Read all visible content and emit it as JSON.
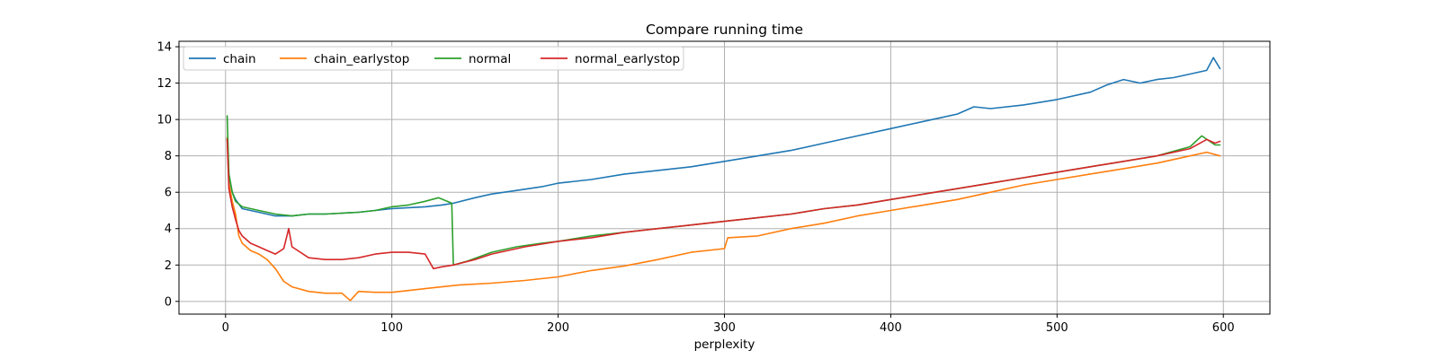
{
  "chart_data": {
    "type": "line",
    "title": "Compare running time",
    "xlabel": "perplexity",
    "ylabel": "",
    "xlim": [
      -28,
      628
    ],
    "ylim": [
      -0.7,
      14.3
    ],
    "xticks": [
      "0",
      "100",
      "200",
      "300",
      "400",
      "500",
      "600"
    ],
    "yticks": [
      "0",
      "2",
      "4",
      "6",
      "8",
      "10",
      "12",
      "14"
    ],
    "grid": true,
    "legend_position": "top-left",
    "colors": {
      "chain": "#1f77b4",
      "chain_earlystop": "#ff7f0e",
      "normal": "#2ca02c",
      "normal_earlystop": "#d62728"
    },
    "series": [
      {
        "name": "chain",
        "color": "#1f77b4",
        "x": [
          1,
          2,
          4,
          6,
          10,
          20,
          30,
          40,
          50,
          60,
          70,
          80,
          90,
          100,
          110,
          120,
          130,
          137,
          150,
          160,
          175,
          190,
          200,
          220,
          240,
          260,
          280,
          300,
          320,
          340,
          360,
          380,
          400,
          420,
          440,
          450,
          460,
          480,
          500,
          520,
          530,
          540,
          550,
          560,
          570,
          580,
          590,
          594,
          598
        ],
        "y": [
          9.0,
          7.0,
          6.0,
          5.6,
          5.1,
          4.9,
          4.7,
          4.7,
          4.8,
          4.8,
          4.85,
          4.9,
          5.0,
          5.1,
          5.15,
          5.2,
          5.3,
          5.4,
          5.7,
          5.9,
          6.1,
          6.3,
          6.5,
          6.7,
          7.0,
          7.2,
          7.4,
          7.7,
          8.0,
          8.3,
          8.7,
          9.1,
          9.5,
          9.9,
          10.3,
          10.7,
          10.6,
          10.8,
          11.1,
          11.5,
          11.9,
          12.2,
          12.0,
          12.2,
          12.3,
          12.5,
          12.7,
          13.4,
          12.8
        ]
      },
      {
        "name": "chain_earlystop",
        "color": "#ff7f0e",
        "x": [
          1,
          2,
          4,
          6,
          8,
          10,
          15,
          20,
          25,
          30,
          35,
          40,
          50,
          60,
          70,
          75,
          80,
          90,
          100,
          110,
          120,
          130,
          140,
          150,
          160,
          180,
          200,
          220,
          240,
          260,
          280,
          300,
          302,
          320,
          340,
          360,
          380,
          400,
          420,
          440,
          460,
          480,
          500,
          520,
          540,
          560,
          580,
          590,
          598
        ],
        "y": [
          9.0,
          6.5,
          5.5,
          4.8,
          3.6,
          3.2,
          2.8,
          2.6,
          2.3,
          1.8,
          1.1,
          0.8,
          0.55,
          0.45,
          0.45,
          0.05,
          0.55,
          0.5,
          0.5,
          0.6,
          0.7,
          0.8,
          0.9,
          0.95,
          1.0,
          1.15,
          1.35,
          1.7,
          1.95,
          2.3,
          2.7,
          2.9,
          3.5,
          3.6,
          4.0,
          4.3,
          4.7,
          5.0,
          5.3,
          5.6,
          6.0,
          6.4,
          6.7,
          7.0,
          7.3,
          7.6,
          8.0,
          8.2,
          8.0
        ]
      },
      {
        "name": "normal",
        "color": "#2ca02c",
        "x": [
          1,
          2,
          4,
          6,
          10,
          20,
          30,
          40,
          50,
          60,
          70,
          80,
          90,
          100,
          110,
          120,
          128,
          136,
          137,
          145,
          160,
          175,
          190,
          200,
          220,
          240,
          260,
          280,
          300,
          320,
          340,
          360,
          380,
          400,
          420,
          440,
          460,
          480,
          500,
          520,
          540,
          560,
          580,
          587,
          595,
          598
        ],
        "y": [
          10.2,
          7.0,
          6.0,
          5.5,
          5.2,
          5.0,
          4.8,
          4.7,
          4.8,
          4.8,
          4.85,
          4.9,
          5.0,
          5.2,
          5.3,
          5.5,
          5.7,
          5.4,
          2.0,
          2.2,
          2.7,
          3.0,
          3.2,
          3.3,
          3.6,
          3.8,
          4.0,
          4.2,
          4.4,
          4.6,
          4.8,
          5.1,
          5.3,
          5.6,
          5.9,
          6.2,
          6.5,
          6.8,
          7.1,
          7.4,
          7.7,
          8.0,
          8.5,
          9.1,
          8.6,
          8.6
        ]
      },
      {
        "name": "normal_earlystop",
        "color": "#d62728",
        "x": [
          1,
          2,
          4,
          6,
          8,
          10,
          15,
          20,
          25,
          30,
          35,
          38,
          40,
          50,
          60,
          70,
          80,
          90,
          100,
          110,
          120,
          125,
          130,
          137,
          150,
          160,
          180,
          200,
          220,
          240,
          260,
          280,
          300,
          320,
          340,
          360,
          380,
          400,
          420,
          440,
          460,
          480,
          500,
          520,
          540,
          560,
          580,
          590,
          595,
          598
        ],
        "y": [
          8.9,
          6.2,
          5.2,
          4.5,
          3.9,
          3.6,
          3.2,
          3.0,
          2.8,
          2.6,
          2.9,
          4.0,
          3.0,
          2.4,
          2.3,
          2.3,
          2.4,
          2.6,
          2.7,
          2.7,
          2.6,
          1.8,
          1.9,
          2.0,
          2.3,
          2.6,
          3.0,
          3.3,
          3.5,
          3.8,
          4.0,
          4.2,
          4.4,
          4.6,
          4.8,
          5.1,
          5.3,
          5.6,
          5.9,
          6.2,
          6.5,
          6.8,
          7.1,
          7.4,
          7.7,
          8.0,
          8.4,
          8.9,
          8.7,
          8.8
        ]
      }
    ]
  }
}
